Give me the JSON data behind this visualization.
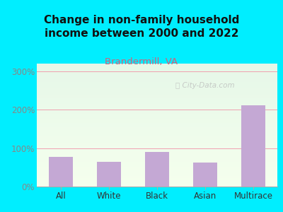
{
  "title": "Change in non-family household\nincome between 2000 and 2022",
  "subtitle": "Brandermill, VA",
  "categories": [
    "All",
    "White",
    "Black",
    "Asian",
    "Multirace"
  ],
  "values": [
    78,
    65,
    90,
    63,
    212
  ],
  "bar_color": "#c4a8d4",
  "title_fontsize": 11,
  "subtitle_fontsize": 9.5,
  "subtitle_color": "#d4607a",
  "title_color": "#111111",
  "ytick_color": "#888888",
  "xtick_color": "#333333",
  "ylim": [
    0,
    320
  ],
  "yticks": [
    0,
    100,
    200,
    300
  ],
  "ytick_labels": [
    "0%",
    "100%",
    "200%",
    "300%"
  ],
  "background_outer": "#00eeff",
  "watermark": "ⓘ City-Data.com",
  "grid_color": "#f0a0b0",
  "grid_linewidth": 0.7,
  "bg_top_color": "#e8f5e2",
  "bg_bottom_color": "#f5fff0"
}
